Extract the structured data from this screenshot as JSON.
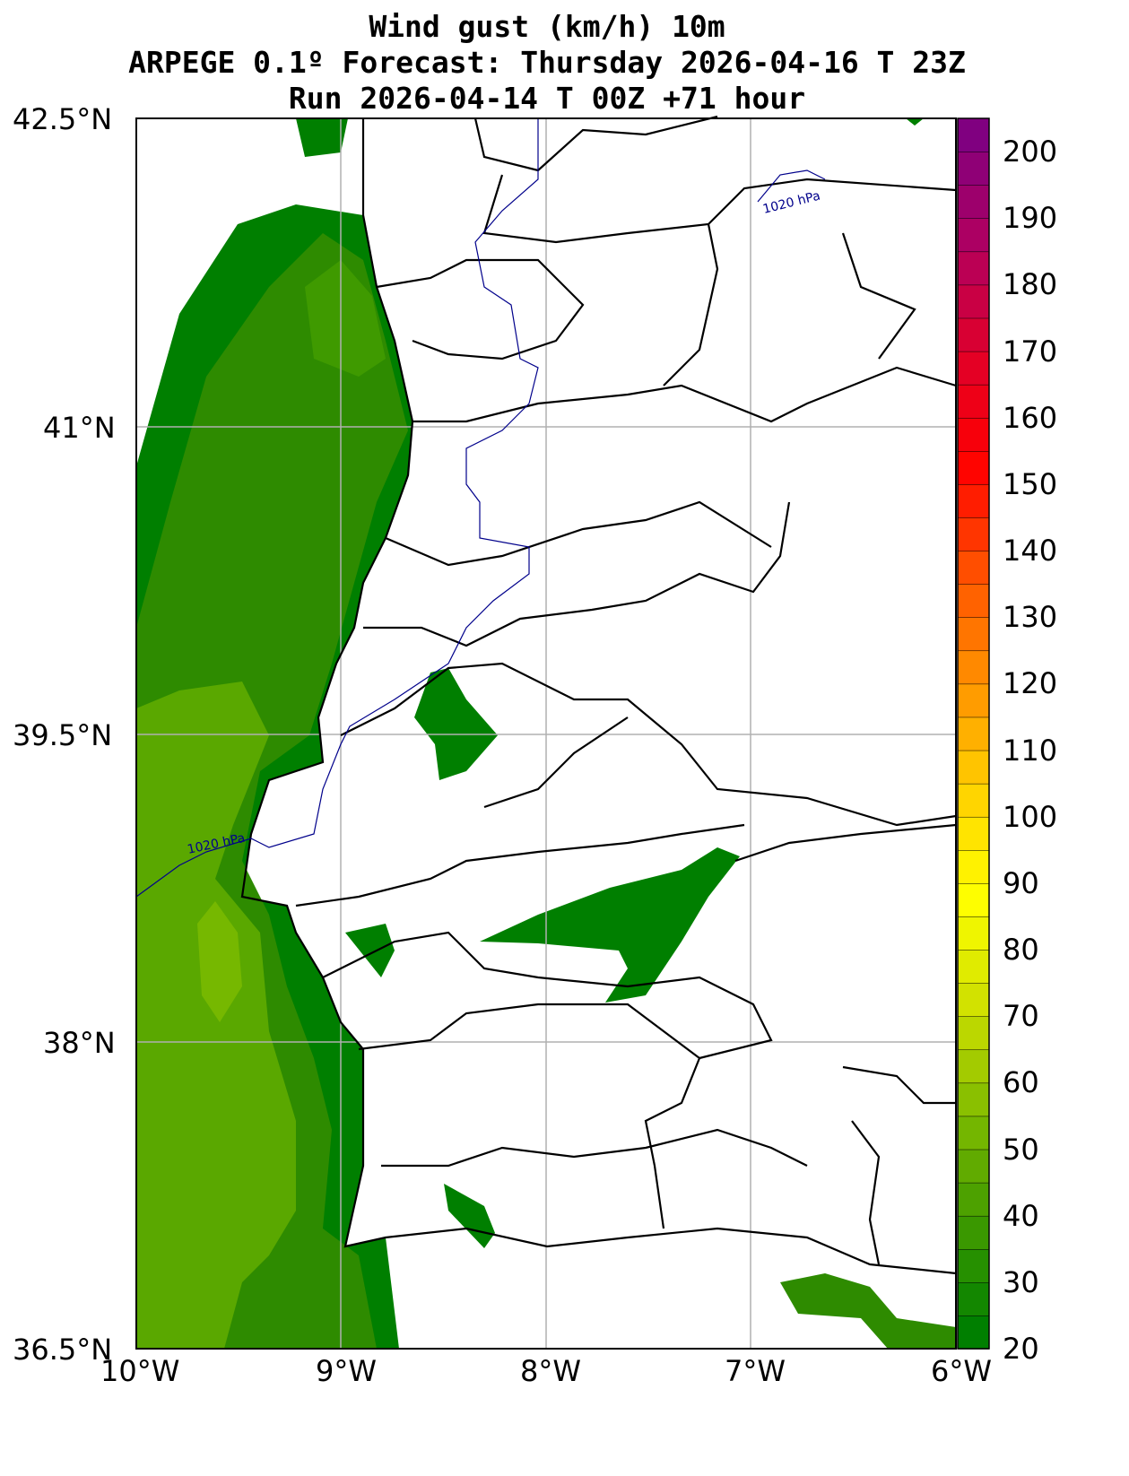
{
  "title": {
    "line1": "Wind gust (km/h) 10m",
    "line2": "ARPEGE 0.1º Forecast: Thursday 2026-04-16 T 23Z",
    "line3": "Run 2026-04-14 T 00Z +71 hour"
  },
  "axes": {
    "lat_labels": [
      "42.5°N",
      "41°N",
      "39.5°N",
      "38°N",
      "36.5°N"
    ],
    "lon_labels": [
      "10°W",
      "9°W",
      "8°W",
      "7°W",
      "6°W"
    ],
    "lon_range": [
      -10,
      -6
    ],
    "lat_range": [
      36.5,
      42.5
    ]
  },
  "isobar": {
    "label_west": "1020 hPa",
    "label_east": "1020 hPa",
    "color": "#00008b"
  },
  "colorbar": {
    "min": 20,
    "max": 205,
    "step": 5,
    "labels": [
      "20",
      "30",
      "40",
      "50",
      "60",
      "70",
      "80",
      "90",
      "100",
      "110",
      "120",
      "130",
      "140",
      "150",
      "160",
      "170",
      "180",
      "190",
      "200"
    ],
    "stops": [
      "#007f00",
      "#3f9a00",
      "#7fbb00",
      "#cfe000",
      "#ffff00",
      "#ffd000",
      "#ff9000",
      "#ff5000",
      "#ff0000",
      "#e0002a",
      "#b00060",
      "#800080"
    ]
  }
}
